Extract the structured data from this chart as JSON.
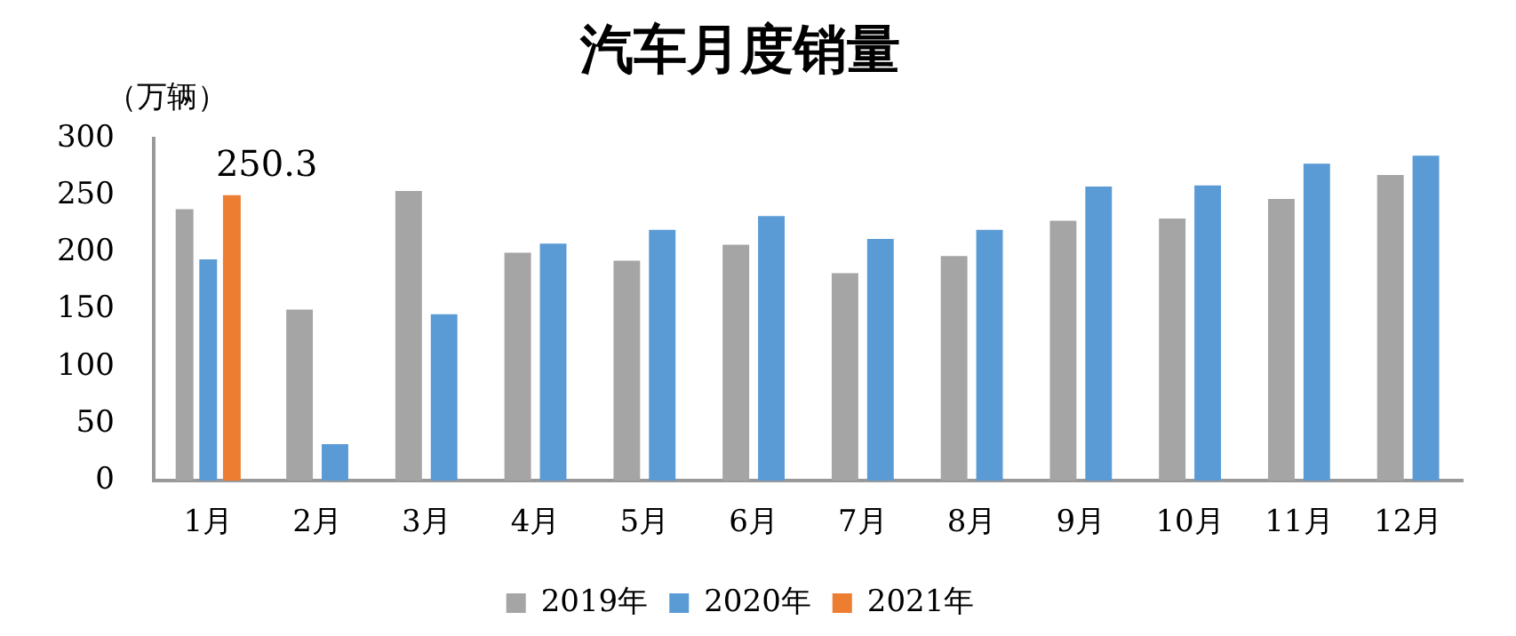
{
  "chart_data": {
    "type": "bar",
    "title": "汽车月度销量",
    "ylabel": "（万辆）",
    "categories": [
      "1月",
      "2月",
      "3月",
      "4月",
      "5月",
      "6月",
      "7月",
      "8月",
      "9月",
      "10月",
      "11月",
      "12月"
    ],
    "series": [
      {
        "name": "2019年",
        "color": "#a5a5a5",
        "values": [
          238,
          150,
          254,
          200,
          193,
          207,
          182,
          197,
          228,
          230,
          247,
          268
        ]
      },
      {
        "name": "2020年",
        "color": "#5b9bd5",
        "values": [
          194,
          32,
          146,
          208,
          220,
          232,
          212,
          220,
          258,
          259,
          278,
          285
        ]
      },
      {
        "name": "2021年",
        "color": "#ed7d31",
        "values": [
          250.3,
          null,
          null,
          null,
          null,
          null,
          null,
          null,
          null,
          null,
          null,
          null
        ],
        "value_labels": [
          "250.3",
          null,
          null,
          null,
          null,
          null,
          null,
          null,
          null,
          null,
          null,
          null
        ]
      }
    ],
    "ylim": [
      0,
      300
    ],
    "yticks": [
      0,
      50,
      100,
      150,
      200,
      250,
      300
    ],
    "grid": false,
    "legend": "bottom"
  }
}
